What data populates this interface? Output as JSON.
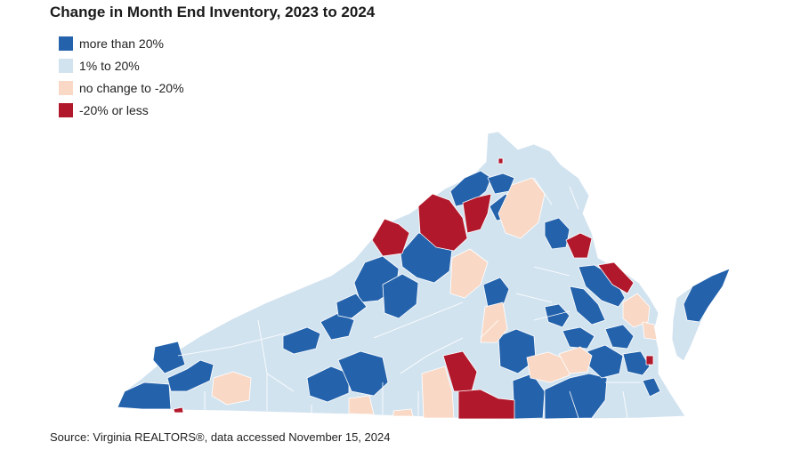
{
  "title": "Change in Month End Inventory, 2023 to 2024",
  "legend": [
    {
      "label": "more than 20%",
      "color": "#2463ac"
    },
    {
      "label": "1% to 20%",
      "color": "#d2e3f0"
    },
    {
      "label": "no change to -20%",
      "color": "#f9d8c5"
    },
    {
      "label": "-20% or less",
      "color": "#b2182b"
    }
  ],
  "source": "Source: Virginia REALTORS®, data accessed November 15, 2024"
}
